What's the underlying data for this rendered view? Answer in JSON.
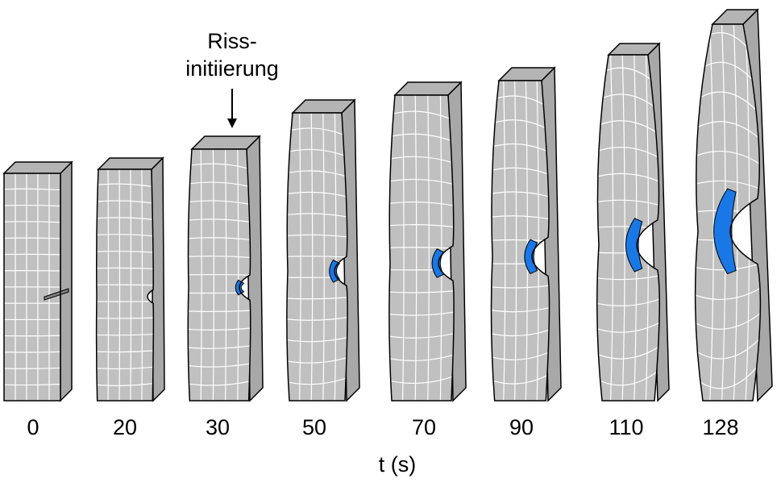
{
  "figure": {
    "annotation": {
      "line1": "Riss-",
      "line2": "initiierung",
      "points_to_time_s": 30
    },
    "axis_label": "t (s)",
    "specimens": [
      {
        "time_s": 0,
        "label": "0",
        "crack_fraction": 0.0
      },
      {
        "time_s": 20,
        "label": "20",
        "crack_fraction": 0.0
      },
      {
        "time_s": 30,
        "label": "30",
        "crack_fraction": 0.15
      },
      {
        "time_s": 50,
        "label": "50",
        "crack_fraction": 0.3
      },
      {
        "time_s": 70,
        "label": "70",
        "crack_fraction": 0.35
      },
      {
        "time_s": 90,
        "label": "90",
        "crack_fraction": 0.4
      },
      {
        "time_s": 110,
        "label": "110",
        "crack_fraction": 0.55
      },
      {
        "time_s": 128,
        "label": "128",
        "crack_fraction": 0.75
      }
    ],
    "colors": {
      "specimen_face": "#c0c0c0",
      "specimen_top": "#b4b4b4",
      "specimen_side": "#a8a8a8",
      "mesh_lines": "#ffffff",
      "outline": "#000000",
      "crack": "#1a78e6"
    }
  }
}
